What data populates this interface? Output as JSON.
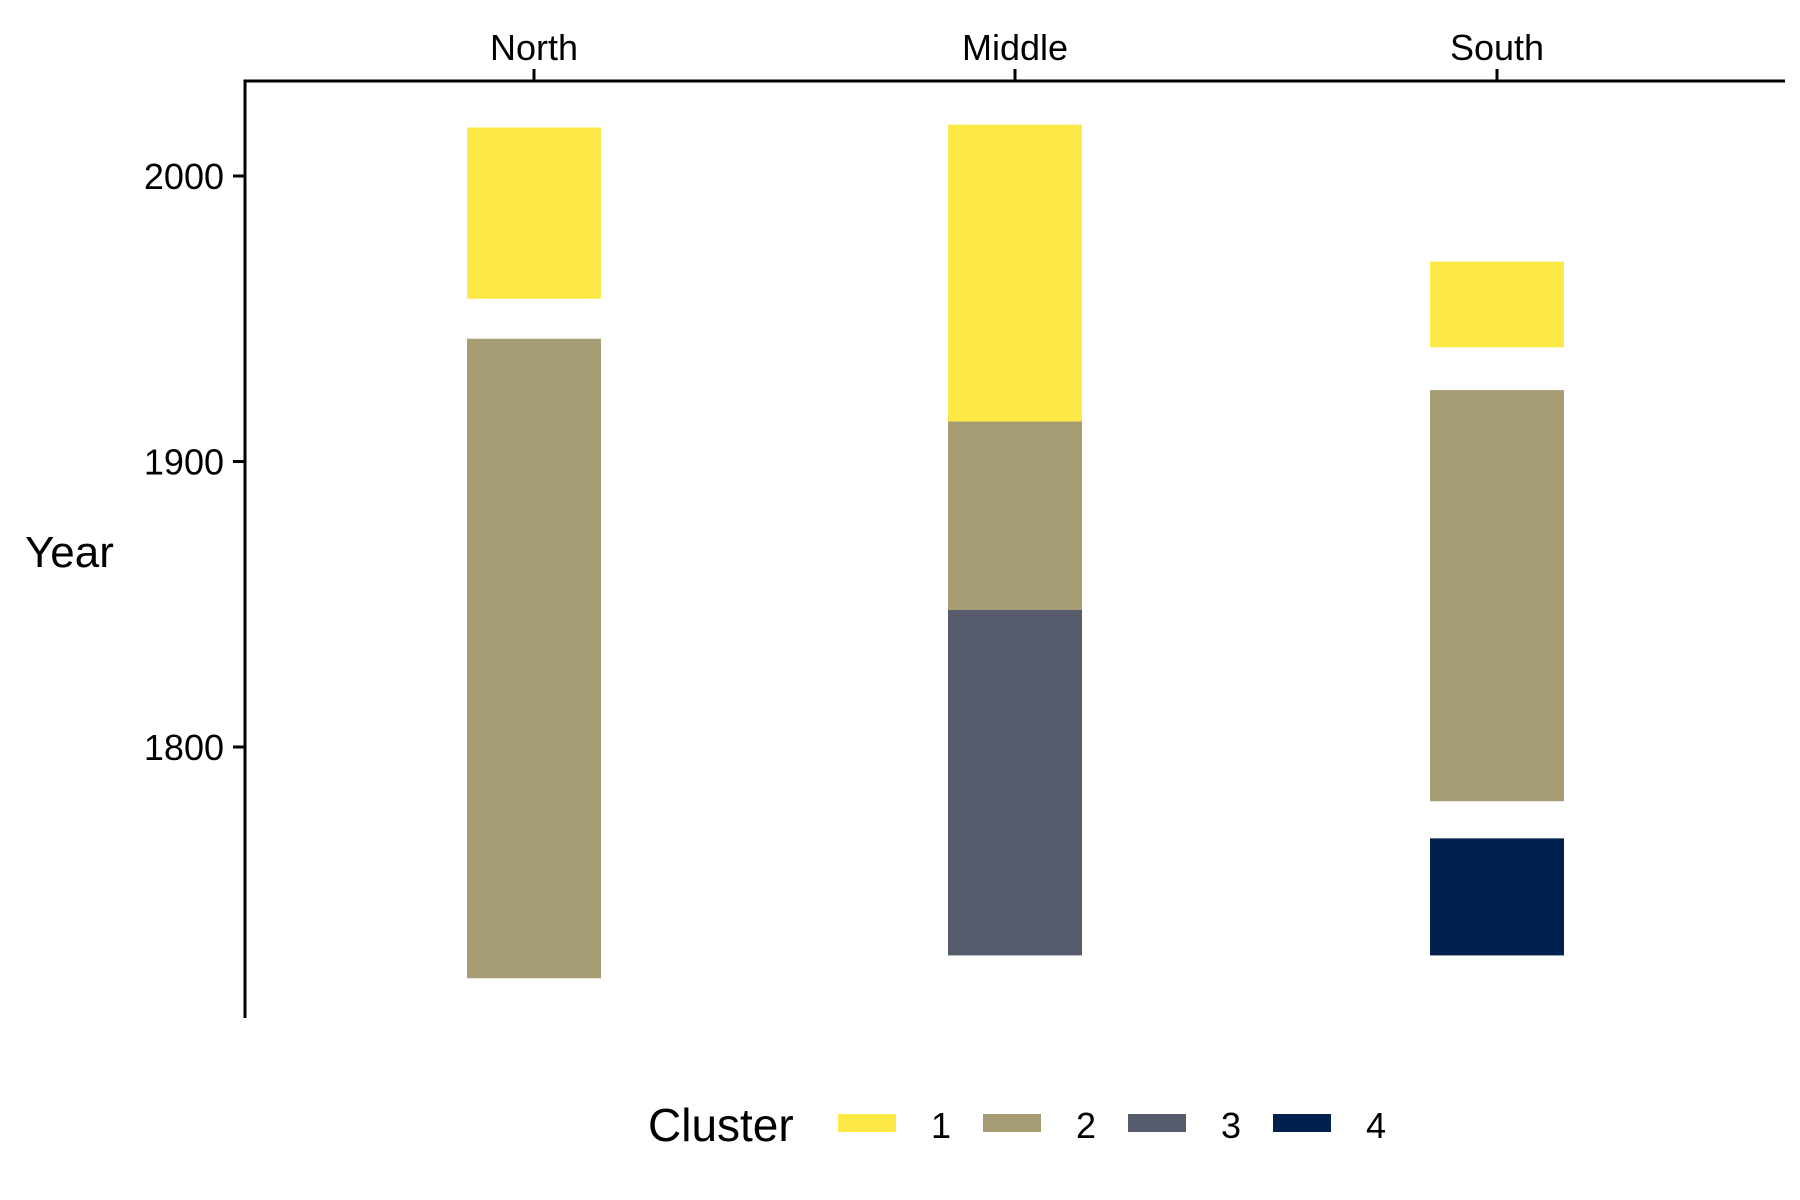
{
  "chart_data": {
    "type": "range-bar",
    "title": "",
    "xlabel": "",
    "ylabel": "Year",
    "categories": [
      "North",
      "Middle",
      "South"
    ],
    "x_axis_position": "top",
    "ylim": [
      1708,
      2035
    ],
    "yticks": [
      1800,
      1900,
      2000
    ],
    "grid": false,
    "legend": {
      "title": "Cluster",
      "position": "bottom",
      "items": [
        {
          "label": "1",
          "color": "#FDE945"
        },
        {
          "label": "2",
          "color": "#A69D75"
        },
        {
          "label": "3",
          "color": "#575C6D"
        },
        {
          "label": "4",
          "color": "#00204D"
        }
      ]
    },
    "segments": [
      {
        "category": "North",
        "cluster": "1",
        "start": 1957,
        "end": 2017
      },
      {
        "category": "North",
        "cluster": "2",
        "start": 1719,
        "end": 1943
      },
      {
        "category": "Middle",
        "cluster": "1",
        "start": 1914,
        "end": 2018
      },
      {
        "category": "Middle",
        "cluster": "2",
        "start": 1848,
        "end": 1914
      },
      {
        "category": "Middle",
        "cluster": "3",
        "start": 1727,
        "end": 1848
      },
      {
        "category": "South",
        "cluster": "1",
        "start": 1940,
        "end": 1970
      },
      {
        "category": "South",
        "cluster": "2",
        "start": 1781,
        "end": 1925
      },
      {
        "category": "South",
        "cluster": "4",
        "start": 1727,
        "end": 1768
      }
    ]
  }
}
